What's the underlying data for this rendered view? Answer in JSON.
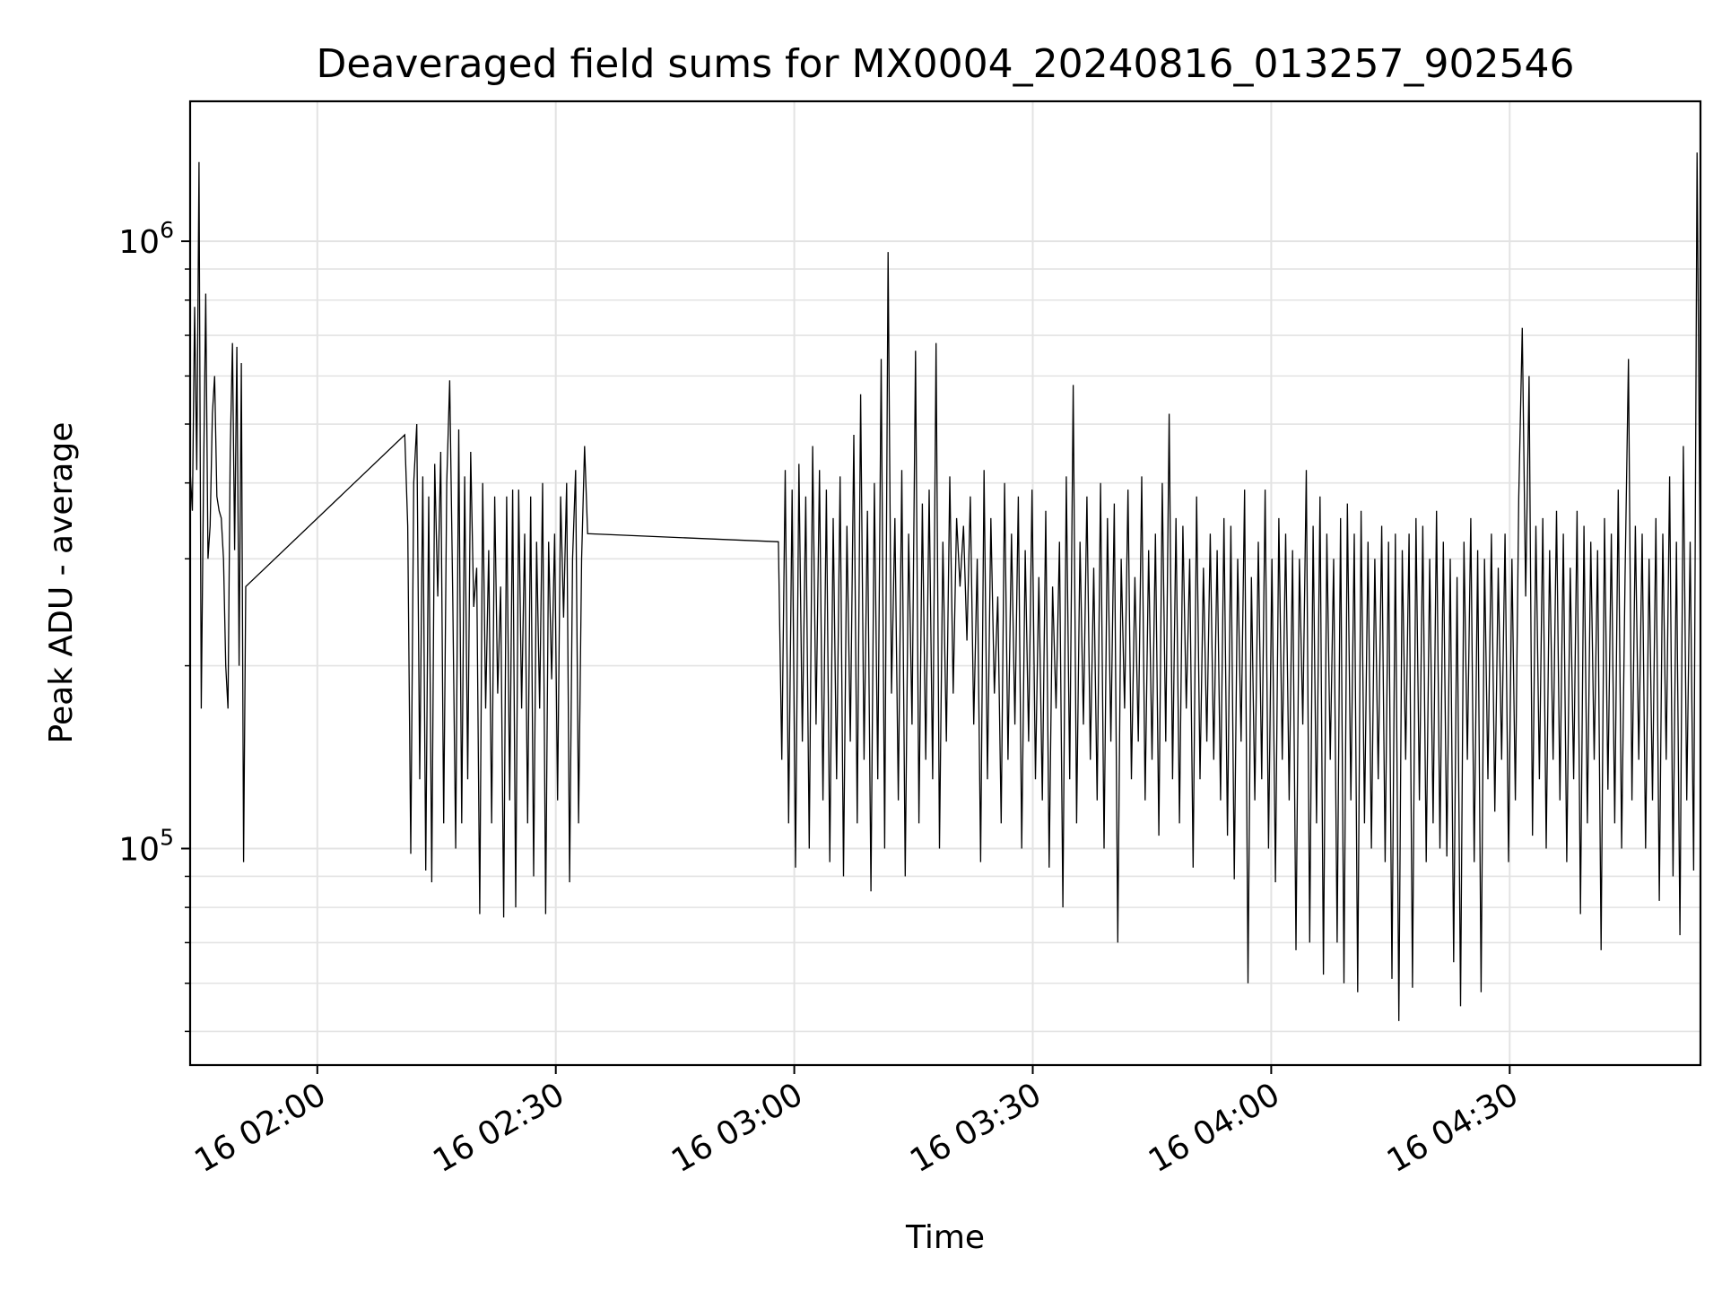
{
  "chart_data": {
    "type": "line",
    "title": "Deaveraged field sums for MX0004_20240816_013257_902546",
    "xlabel": "Time",
    "ylabel": "Peak ADU - average",
    "x_ticks": [
      "16 02:00",
      "16 02:30",
      "16 03:00",
      "16 03:30",
      "16 04:00",
      "16 04:30"
    ],
    "y_ticks": [
      {
        "base": "10",
        "exp": "5",
        "value": 100000
      },
      {
        "base": "10",
        "exp": "6",
        "value": 1000000
      }
    ],
    "y_scale": "log",
    "xlim": [
      "2024-08-16 01:44",
      "2024-08-16 04:54"
    ],
    "ylim": [
      44000,
      1700000
    ],
    "grid": true,
    "line_color": "#000000",
    "series": [
      {
        "x_range": [
          "2024-08-16 01:44",
          "2024-08-16 01:51"
        ],
        "values": [
          420000,
          360000,
          780000,
          420000,
          1350000,
          170000,
          400000,
          820000,
          300000,
          340000,
          520000,
          600000,
          380000,
          360000,
          350000,
          300000,
          200000,
          170000,
          450000,
          680000,
          310000,
          670000,
          200000,
          630000,
          95000,
          270000
        ]
      },
      {
        "x_range": [
          "2024-08-16 02:11",
          "2024-08-16 02:34"
        ],
        "values": [
          480000,
          340000,
          98000,
          400000,
          500000,
          130000,
          410000,
          92000,
          380000,
          88000,
          430000,
          260000,
          450000,
          110000,
          400000,
          590000,
          260000,
          100000,
          490000,
          110000,
          410000,
          130000,
          450000,
          250000,
          290000,
          78000,
          400000,
          170000,
          310000,
          110000,
          380000,
          180000,
          270000,
          77000,
          380000,
          120000,
          390000,
          80000,
          390000,
          170000,
          330000,
          110000,
          380000,
          90000,
          320000,
          170000,
          400000,
          78000,
          320000,
          190000,
          330000,
          120000,
          380000,
          240000,
          400000,
          88000,
          300000,
          420000,
          110000,
          300000,
          460000,
          330000
        ]
      },
      {
        "x_range": [
          "2024-08-16 02:58",
          "2024-08-16 04:54"
        ],
        "values": [
          320000,
          140000,
          420000,
          110000,
          390000,
          93000,
          430000,
          150000,
          380000,
          100000,
          460000,
          160000,
          420000,
          120000,
          390000,
          95000,
          350000,
          130000,
          410000,
          90000,
          340000,
          150000,
          480000,
          110000,
          560000,
          140000,
          360000,
          85000,
          400000,
          130000,
          640000,
          100000,
          960000,
          180000,
          350000,
          120000,
          420000,
          90000,
          330000,
          160000,
          660000,
          110000,
          370000,
          140000,
          390000,
          130000,
          680000,
          100000,
          320000,
          150000,
          410000,
          180000,
          350000,
          270000,
          340000,
          220000,
          380000,
          160000,
          300000,
          95000,
          420000,
          130000,
          350000,
          180000,
          260000,
          110000,
          400000,
          140000,
          330000,
          160000,
          380000,
          100000,
          310000,
          150000,
          390000,
          130000,
          280000,
          120000,
          360000,
          93000,
          270000,
          170000,
          320000,
          80000,
          410000,
          130000,
          580000,
          110000,
          320000,
          160000,
          380000,
          140000,
          290000,
          120000,
          400000,
          100000,
          350000,
          150000,
          370000,
          70000,
          300000,
          170000,
          390000,
          130000,
          280000,
          150000,
          410000,
          120000,
          310000,
          140000,
          330000,
          105000,
          400000,
          150000,
          520000,
          130000,
          350000,
          110000,
          340000,
          170000,
          300000,
          93000,
          380000,
          130000,
          290000,
          150000,
          330000,
          140000,
          310000,
          120000,
          350000,
          105000,
          340000,
          89000,
          300000,
          150000,
          390000,
          60000,
          280000,
          120000,
          320000,
          130000,
          390000,
          100000,
          300000,
          88000,
          350000,
          140000,
          330000,
          120000,
          310000,
          68000,
          300000,
          160000,
          420000,
          70000,
          340000,
          110000,
          380000,
          62000,
          330000,
          140000,
          300000,
          70000,
          350000,
          60000,
          370000,
          120000,
          330000,
          58000,
          360000,
          110000,
          320000,
          100000,
          300000,
          130000,
          340000,
          95000,
          320000,
          61000,
          330000,
          52000,
          310000,
          140000,
          330000,
          59000,
          350000,
          120000,
          340000,
          95000,
          300000,
          110000,
          360000,
          100000,
          320000,
          97000,
          300000,
          65000,
          280000,
          55000,
          320000,
          140000,
          350000,
          95000,
          310000,
          58000,
          300000,
          130000,
          330000,
          115000,
          290000,
          140000,
          330000,
          95000,
          300000,
          120000,
          380000,
          720000,
          260000,
          600000,
          105000,
          340000,
          130000,
          350000,
          100000,
          310000,
          140000,
          360000,
          120000,
          330000,
          95000,
          290000,
          130000,
          360000,
          78000,
          340000,
          110000,
          320000,
          140000,
          310000,
          68000,
          350000,
          125000,
          330000,
          110000,
          390000,
          100000,
          280000,
          640000,
          120000,
          340000,
          140000,
          330000,
          100000,
          300000,
          120000,
          350000,
          82000,
          330000,
          140000,
          410000,
          90000,
          320000,
          72000,
          460000,
          120000,
          320000,
          92000,
          1400000,
          250000
        ]
      }
    ]
  }
}
